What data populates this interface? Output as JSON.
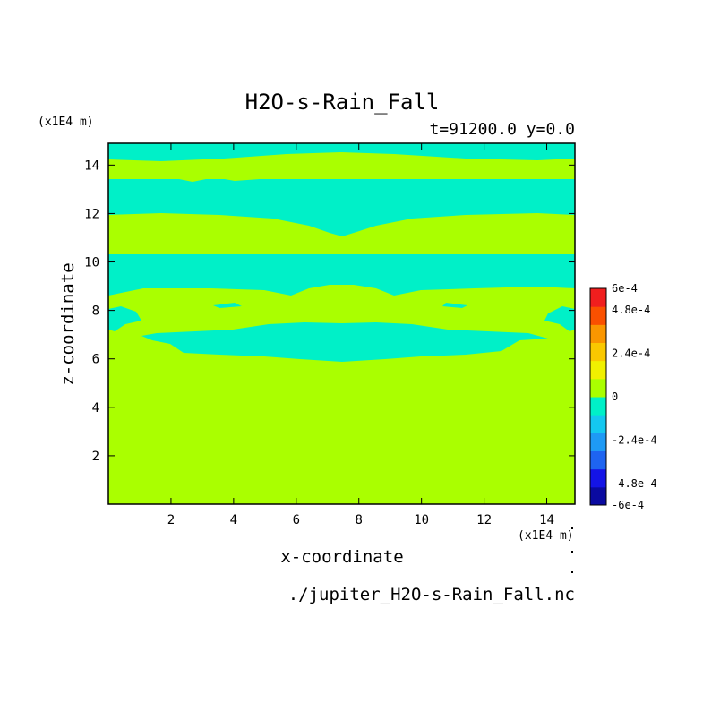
{
  "chart_data": {
    "type": "heatmap",
    "title": "H2O-s-Rain_Fall",
    "subtitle": "t=91200.0 y=0.0",
    "xlabel": "x-coordinate",
    "ylabel": "z-coordinate",
    "x_unit": "(x1E4 m)",
    "y_unit": "(x1E4 m)",
    "source_file": "./jupiter_H2O-s-Rain_Fall.nc",
    "xlim": [
      0,
      14.9
    ],
    "ylim": [
      0,
      14.9
    ],
    "x_ticks": [
      2,
      4,
      6,
      8,
      10,
      12,
      14
    ],
    "y_ticks": [
      2,
      4,
      6,
      8,
      10,
      12,
      14
    ],
    "colorbar": {
      "tick_labels": [
        "6e-4",
        "4.8e-4",
        "2.4e-4",
        "0",
        "-2.4e-4",
        "-4.8e-4",
        "-6e-4"
      ],
      "tick_values": [
        0.0006,
        0.00048,
        0.00024,
        0,
        -0.00024,
        -0.00048,
        -0.0006
      ],
      "levels": [
        -0.0006,
        -0.0005,
        -0.0004,
        -0.0003,
        -0.0002,
        -0.0001,
        0,
        0.0001,
        0.0002,
        0.0003,
        0.0004,
        0.0005,
        0.0006
      ],
      "colors": [
        "#0a0aa0",
        "#1414e6",
        "#1e64f0",
        "#1e9af5",
        "#14c8f0",
        "#00f0c8",
        "#aaff00",
        "#f0f000",
        "#fac800",
        "#fa9600",
        "#fa5000",
        "#f01e1e"
      ]
    },
    "field_levels": {
      "zero_to_positive_color": "#aaff00",
      "slightly_negative_color": "#00f0c8"
    },
    "regions": [
      {
        "value_band": "slightly_negative",
        "z_bottom": 14.45,
        "z_top": 14.85,
        "description": "top thin band"
      },
      {
        "value_band": "slightly_negative",
        "z_bottom": 11.9,
        "z_top": 13.5,
        "description": "band near 12-13.5"
      },
      {
        "value_band": "slightly_negative",
        "z_bottom": 8.7,
        "z_top": 10.4,
        "description": "band near 9-10.4"
      },
      {
        "value_band": "slightly_negative",
        "z_bottom": 6.0,
        "z_top": 7.4,
        "description": "lower wavy band near 6-7.4"
      }
    ]
  }
}
